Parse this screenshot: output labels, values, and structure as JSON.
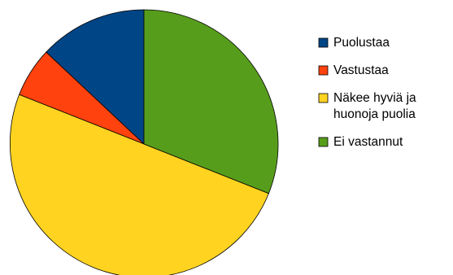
{
  "chart_data": {
    "type": "pie",
    "categories": [
      "Puolustaa",
      "Vastustaa",
      "Näkee hyviä ja huonoja puolia",
      "Ei vastannut"
    ],
    "values": [
      13,
      6,
      50,
      31
    ],
    "unit": "%",
    "colors": [
      "#004586",
      "#ff420e",
      "#ffd320",
      "#579d1c"
    ],
    "start_angle_deg": 0,
    "direction": "counterclockwise",
    "legend": {
      "position": "right",
      "entries": [
        {
          "lines": [
            "Puolustaa"
          ]
        },
        {
          "lines": [
            "Vastustaa"
          ]
        },
        {
          "lines": [
            "Näkee hyviä ja",
            "huonoja puolia"
          ]
        },
        {
          "lines": [
            "Ei vastannut"
          ]
        }
      ]
    }
  }
}
